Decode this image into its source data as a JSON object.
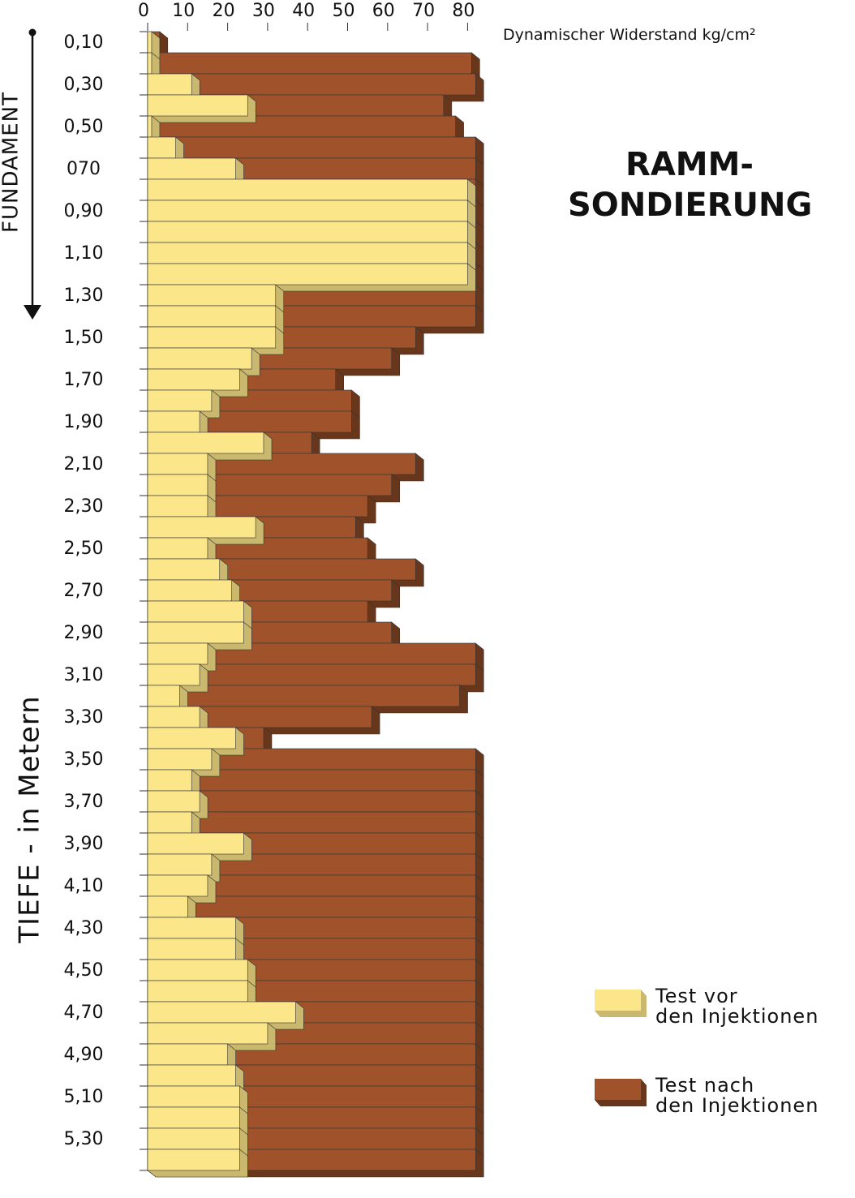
{
  "chart_data": {
    "type": "bar3d-horizontal",
    "title": "RAMM-SONDIERUNG",
    "x_label": "Dynamischer Widerstand kg/cm²",
    "y_label": "TIEFE - in Metern",
    "annotation": "FUNDAMENT",
    "categories": [
      "0,10",
      null,
      "0,30",
      null,
      "0,50",
      null,
      "070",
      null,
      "0,90",
      null,
      "1,10",
      null,
      "1,30",
      null,
      "1,50",
      null,
      "1,70",
      null,
      "1,90",
      null,
      "2,10",
      null,
      "2,30",
      null,
      "2,50",
      null,
      "2,70",
      null,
      "2,90",
      null,
      "3,10",
      null,
      "3,30",
      null,
      "3,50",
      null,
      "3,70",
      null,
      "3,90",
      null,
      "4,10",
      null,
      "4,30",
      null,
      "4,50",
      null,
      "4,70",
      null,
      "4,90",
      null,
      "5,10",
      null,
      "5,30",
      null
    ],
    "xlim": [
      0,
      85
    ],
    "xticks": [
      0,
      10,
      20,
      30,
      40,
      50,
      60,
      70,
      80
    ],
    "series": [
      {
        "name": "Test vor\nden Injektionen",
        "color": "#fbe68a",
        "values": [
          1,
          1,
          11,
          25,
          1,
          7,
          22,
          80,
          80,
          80,
          80,
          80,
          32,
          32,
          32,
          26,
          23,
          16,
          13,
          29,
          15,
          15,
          15,
          27,
          15,
          18,
          21,
          24,
          24,
          15,
          13,
          8,
          13,
          22,
          16,
          11,
          13,
          11,
          24,
          16,
          15,
          10,
          22,
          22,
          25,
          25,
          37,
          30,
          20,
          22,
          23,
          23,
          23,
          23
        ]
      },
      {
        "name": "Test nach\nden Injektionen",
        "color": "#a0532a",
        "values": [
          3,
          81,
          82,
          74,
          77,
          82,
          82,
          82,
          82,
          82,
          82,
          82,
          82,
          82,
          67,
          61,
          47,
          51,
          51,
          41,
          67,
          61,
          55,
          52,
          55,
          67,
          61,
          55,
          61,
          82,
          82,
          78,
          56,
          29,
          82,
          82,
          82,
          82,
          82,
          82,
          82,
          82,
          82,
          82,
          82,
          82,
          82,
          82,
          82,
          82,
          82,
          82,
          82,
          82
        ]
      }
    ]
  }
}
